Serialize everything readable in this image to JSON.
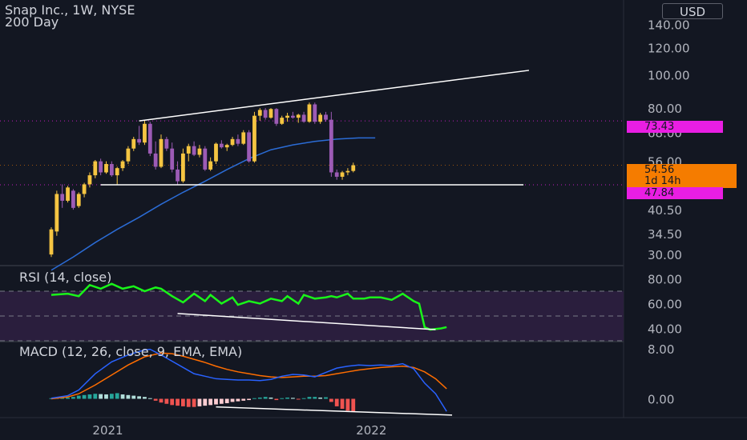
{
  "header": {
    "title": "Snap Inc., 1W, NYSE",
    "subtitle": "200 Day",
    "currency": "USD"
  },
  "badges": {
    "level_high": "73.43",
    "price": "54.56",
    "countdown": "1d 14h",
    "level_low": "47.84"
  },
  "colors": {
    "background": "#131722",
    "bull": "#f5c542",
    "bear": "#9c5bb5",
    "ma": "#2b6cd6",
    "rsi": "#19f519",
    "rsi_band": "#2a1e3d",
    "macd": "#2962ff",
    "signal": "#ff6d00",
    "hist_pos": "#26a69a",
    "hist_neg": "#ef5350",
    "level_badge": "#e91ee3",
    "price_badge": "#f57c00"
  },
  "chart_data": [
    {
      "type": "candlestick",
      "title": "Snap Inc., 1W, NYSE",
      "scale": "log",
      "y_ticks": [
        "140.00",
        "120.00",
        "100.00",
        "80.00",
        "68.00",
        "56.00",
        "40.50",
        "34.50",
        "30.00"
      ],
      "ylim": [
        28,
        165
      ],
      "candles_ohlc": [
        [
          30.0,
          36.0,
          29.5,
          35.5
        ],
        [
          35.0,
          46.0,
          34.0,
          45.0
        ],
        [
          45.0,
          48.0,
          41.0,
          43.0
        ],
        [
          43.0,
          47.5,
          42.5,
          47.0
        ],
        [
          46.0,
          46.5,
          40.5,
          41.0
        ],
        [
          41.5,
          45.5,
          41.0,
          45.0
        ],
        [
          45.0,
          48.5,
          44.0,
          48.0
        ],
        [
          48.0,
          52.0,
          47.0,
          51.0
        ],
        [
          51.0,
          56.5,
          50.0,
          56.0
        ],
        [
          56.0,
          57.0,
          51.0,
          52.0
        ],
        [
          52.0,
          56.0,
          51.5,
          55.0
        ],
        [
          55.0,
          56.0,
          50.5,
          51.0
        ],
        [
          51.0,
          54.0,
          48.0,
          53.5
        ],
        [
          53.5,
          56.5,
          52.5,
          56.0
        ],
        [
          56.0,
          62.0,
          55.0,
          61.0
        ],
        [
          61.0,
          66.0,
          60.0,
          65.0
        ],
        [
          65.0,
          71.0,
          62.5,
          63.5
        ],
        [
          63.5,
          73.5,
          62.5,
          72.0
        ],
        [
          72.0,
          73.0,
          58.0,
          59.0
        ],
        [
          59.0,
          64.0,
          53.0,
          54.0
        ],
        [
          54.0,
          67.0,
          53.5,
          65.0
        ],
        [
          65.0,
          66.0,
          60.0,
          61.0
        ],
        [
          61.0,
          63.5,
          52.0,
          53.0
        ],
        [
          53.0,
          56.0,
          48.0,
          49.0
        ],
        [
          49.0,
          61.0,
          48.5,
          59.0
        ],
        [
          59.0,
          63.0,
          56.0,
          62.0
        ],
        [
          62.0,
          64.0,
          58.0,
          58.5
        ],
        [
          58.5,
          62.5,
          57.5,
          61.0
        ],
        [
          61.0,
          62.0,
          52.5,
          53.0
        ],
        [
          53.0,
          57.5,
          52.5,
          56.0
        ],
        [
          56.0,
          63.5,
          55.0,
          63.0
        ],
        [
          63.0,
          64.5,
          61.0,
          61.5
        ],
        [
          61.5,
          63.0,
          60.0,
          62.5
        ],
        [
          62.5,
          66.0,
          62.0,
          65.0
        ],
        [
          65.0,
          67.0,
          62.0,
          63.0
        ],
        [
          63.0,
          69.0,
          62.5,
          68.0
        ],
        [
          68.0,
          69.0,
          55.5,
          56.0
        ],
        [
          56.0,
          78.0,
          55.5,
          76.0
        ],
        [
          76.0,
          80.0,
          73.5,
          79.0
        ],
        [
          79.0,
          80.0,
          74.0,
          75.0
        ],
        [
          75.0,
          80.0,
          74.5,
          79.5
        ],
        [
          79.5,
          80.0,
          71.0,
          72.0
        ],
        [
          72.0,
          76.0,
          71.5,
          75.0
        ],
        [
          75.0,
          77.5,
          73.0,
          76.0
        ],
        [
          76.0,
          78.0,
          74.5,
          75.0
        ],
        [
          75.0,
          77.0,
          72.5,
          76.5
        ],
        [
          76.5,
          78.0,
          72.5,
          73.0
        ],
        [
          73.0,
          83.0,
          72.5,
          82.0
        ],
        [
          82.0,
          83.0,
          72.0,
          73.0
        ],
        [
          73.0,
          77.5,
          72.0,
          76.5
        ],
        [
          76.5,
          78.0,
          73.0,
          74.0
        ],
        [
          74.0,
          78.0,
          50.5,
          52.0
        ],
        [
          52.0,
          53.0,
          49.5,
          50.5
        ],
        [
          50.5,
          52.5,
          49.5,
          52.0
        ],
        [
          52.0,
          53.5,
          51.0,
          52.5
        ],
        [
          52.5,
          55.5,
          52.0,
          54.56
        ]
      ],
      "moving_average_200": [
        [
          0,
          27.0
        ],
        [
          4,
          29.5
        ],
        [
          8,
          32.5
        ],
        [
          12,
          35.5
        ],
        [
          16,
          38.5
        ],
        [
          20,
          42.0
        ],
        [
          24,
          45.5
        ],
        [
          28,
          49.0
        ],
        [
          32,
          53.0
        ],
        [
          36,
          57.0
        ],
        [
          40,
          60.5
        ],
        [
          44,
          62.5
        ],
        [
          48,
          64.0
        ],
        [
          52,
          65.0
        ],
        [
          56,
          65.5
        ],
        [
          59,
          65.5
        ]
      ],
      "trendlines": [
        {
          "from": [
            16,
            73.43
          ],
          "to": [
            87,
            103.0
          ]
        },
        {
          "from": [
            9,
            47.84
          ],
          "to": [
            86,
            47.84
          ]
        }
      ],
      "levels": [
        73.43,
        47.84
      ],
      "last_price": 54.56
    },
    {
      "type": "line",
      "title": "RSI (14, close)",
      "y_ticks": [
        "80.00",
        "60.00",
        "40.00"
      ],
      "ylim": [
        30,
        90
      ],
      "band": [
        30,
        70
      ],
      "rsi": [
        [
          0,
          67
        ],
        [
          3,
          68
        ],
        [
          5,
          66
        ],
        [
          7,
          75
        ],
        [
          9,
          72
        ],
        [
          11,
          76
        ],
        [
          13,
          72
        ],
        [
          15,
          74
        ],
        [
          17,
          70
        ],
        [
          19,
          73
        ],
        [
          20,
          72
        ],
        [
          22,
          66
        ],
        [
          24,
          61
        ],
        [
          26,
          68
        ],
        [
          28,
          62
        ],
        [
          29,
          67
        ],
        [
          31,
          60
        ],
        [
          33,
          65
        ],
        [
          34,
          59
        ],
        [
          36,
          62
        ],
        [
          38,
          60
        ],
        [
          40,
          64
        ],
        [
          42,
          62
        ],
        [
          43,
          66
        ],
        [
          45,
          60
        ],
        [
          46,
          67
        ],
        [
          48,
          64
        ],
        [
          50,
          65
        ],
        [
          51,
          66
        ],
        [
          52,
          65
        ],
        [
          54,
          68
        ],
        [
          55,
          64
        ],
        [
          57,
          64
        ],
        [
          58,
          65
        ],
        [
          60,
          65
        ],
        [
          62,
          63
        ],
        [
          64,
          68
        ],
        [
          66,
          62
        ],
        [
          67,
          60
        ],
        [
          68,
          41
        ],
        [
          69,
          39
        ],
        [
          71,
          40
        ],
        [
          72,
          41
        ]
      ],
      "divergence": {
        "from": [
          23,
          52
        ],
        "to": [
          70,
          39
        ]
      }
    },
    {
      "type": "line",
      "title": "MACD (12, 26, close, 9, EMA, EMA)",
      "y_ticks": [
        "8.00",
        "0.00"
      ],
      "ylim": [
        -3,
        9
      ],
      "macd": [
        [
          0,
          0.1
        ],
        [
          3,
          0.5
        ],
        [
          5,
          1.4
        ],
        [
          8,
          4.0
        ],
        [
          11,
          5.9
        ],
        [
          14,
          7.0
        ],
        [
          17,
          7.8
        ],
        [
          18,
          7.9
        ],
        [
          20,
          7.0
        ],
        [
          22,
          6.0
        ],
        [
          24,
          5.0
        ],
        [
          26,
          4.0
        ],
        [
          28,
          3.6
        ],
        [
          30,
          3.2
        ],
        [
          32,
          3.1
        ],
        [
          34,
          3.0
        ],
        [
          36,
          3.0
        ],
        [
          38,
          2.9
        ],
        [
          40,
          3.1
        ],
        [
          42,
          3.6
        ],
        [
          44,
          3.9
        ],
        [
          46,
          3.8
        ],
        [
          48,
          3.5
        ],
        [
          50,
          4.2
        ],
        [
          52,
          4.9
        ],
        [
          54,
          5.2
        ],
        [
          56,
          5.4
        ],
        [
          58,
          5.3
        ],
        [
          60,
          5.4
        ],
        [
          62,
          5.3
        ],
        [
          64,
          5.6
        ],
        [
          66,
          4.8
        ],
        [
          68,
          2.5
        ],
        [
          70,
          0.8
        ],
        [
          72,
          -2.0
        ]
      ],
      "signal": [
        [
          0,
          0.0
        ],
        [
          3,
          0.3
        ],
        [
          5,
          0.8
        ],
        [
          8,
          2.2
        ],
        [
          11,
          3.8
        ],
        [
          14,
          5.4
        ],
        [
          17,
          6.7
        ],
        [
          20,
          7.3
        ],
        [
          22,
          7.2
        ],
        [
          24,
          6.8
        ],
        [
          26,
          6.3
        ],
        [
          28,
          5.8
        ],
        [
          30,
          5.2
        ],
        [
          32,
          4.7
        ],
        [
          34,
          4.3
        ],
        [
          36,
          4.0
        ],
        [
          38,
          3.7
        ],
        [
          40,
          3.5
        ],
        [
          42,
          3.4
        ],
        [
          44,
          3.5
        ],
        [
          46,
          3.6
        ],
        [
          48,
          3.6
        ],
        [
          50,
          3.7
        ],
        [
          52,
          4.0
        ],
        [
          54,
          4.3
        ],
        [
          56,
          4.6
        ],
        [
          58,
          4.8
        ],
        [
          60,
          5.0
        ],
        [
          62,
          5.1
        ],
        [
          64,
          5.2
        ],
        [
          66,
          5.0
        ],
        [
          68,
          4.3
        ],
        [
          70,
          3.2
        ],
        [
          72,
          1.6
        ]
      ],
      "histogram": [
        0.1,
        0.12,
        0.15,
        0.2,
        0.3,
        0.5,
        0.6,
        0.7,
        0.8,
        0.75,
        0.7,
        0.8,
        0.9,
        0.7,
        0.6,
        0.5,
        0.4,
        0.3,
        0.1,
        -0.3,
        -0.6,
        -0.8,
        -1.0,
        -1.1,
        -1.2,
        -1.3,
        -1.3,
        -1.2,
        -1.1,
        -1.0,
        -0.9,
        -0.8,
        -0.7,
        -0.5,
        -0.4,
        -0.3,
        -0.2,
        0.1,
        0.2,
        0.3,
        0.2,
        -0.2,
        0.1,
        0.2,
        0.15,
        -0.1,
        0.1,
        0.3,
        0.3,
        0.2,
        0.25,
        -0.5,
        -1.2,
        -1.6,
        -1.9,
        -2.1
      ],
      "divergence": {
        "from": [
          30,
          -1.3
        ],
        "to": [
          73,
          -2.6
        ]
      }
    }
  ],
  "x_axis": {
    "labels": [
      {
        "label": "2021",
        "at": 10
      },
      {
        "label": "2022",
        "at": 58
      }
    ]
  }
}
